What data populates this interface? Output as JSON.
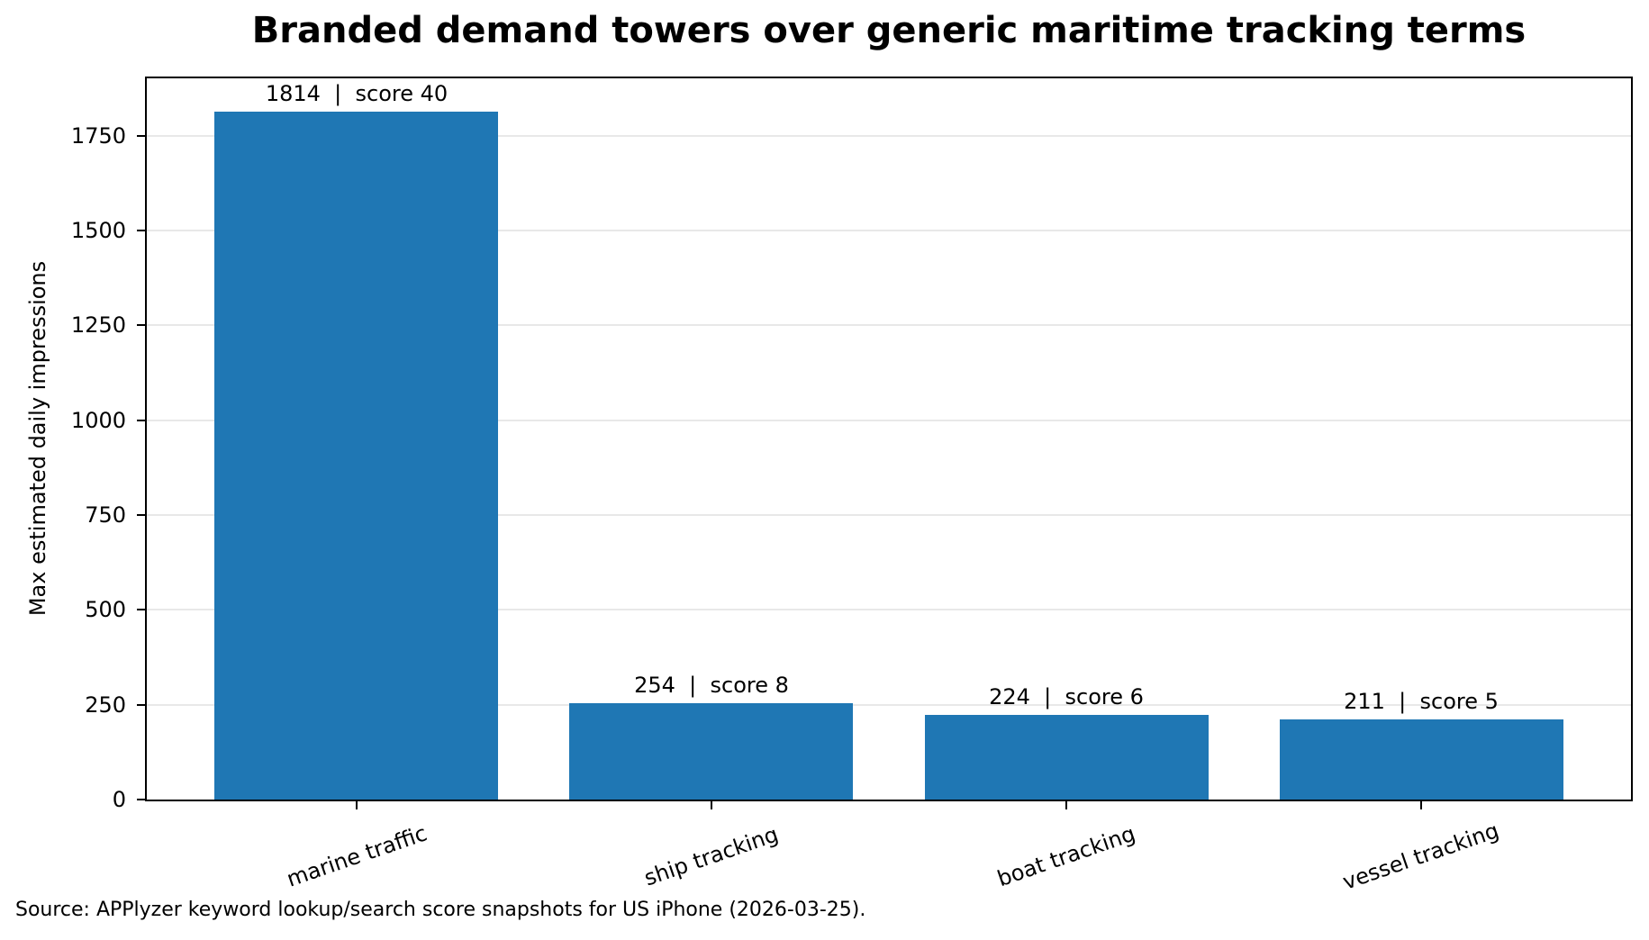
{
  "chart_data": {
    "type": "bar",
    "title": "Branded demand towers over generic maritime tracking terms",
    "ylabel": "Max estimated daily impressions",
    "xlabel": "",
    "categories": [
      "marine traffic",
      "ship tracking",
      "boat tracking",
      "vessel tracking"
    ],
    "values": [
      1814,
      254,
      224,
      211
    ],
    "scores": [
      40,
      8,
      6,
      5
    ],
    "bar_labels": [
      "1814  |  score 40",
      "254  |  score 8",
      "224  |  score 6",
      "211  |  score 5"
    ],
    "yticks": [
      0,
      250,
      500,
      750,
      1000,
      1250,
      1500,
      1750
    ],
    "ylim": [
      0,
      1901
    ],
    "grid": "horizontal-only",
    "legend": "none",
    "bar_color": "#1f77b4",
    "axis_color": "#000000",
    "grid_color": "#e8e8e8",
    "source_note": "Source: APPlyzer keyword lookup/search score snapshots for US iPhone (2026-03-25)."
  }
}
